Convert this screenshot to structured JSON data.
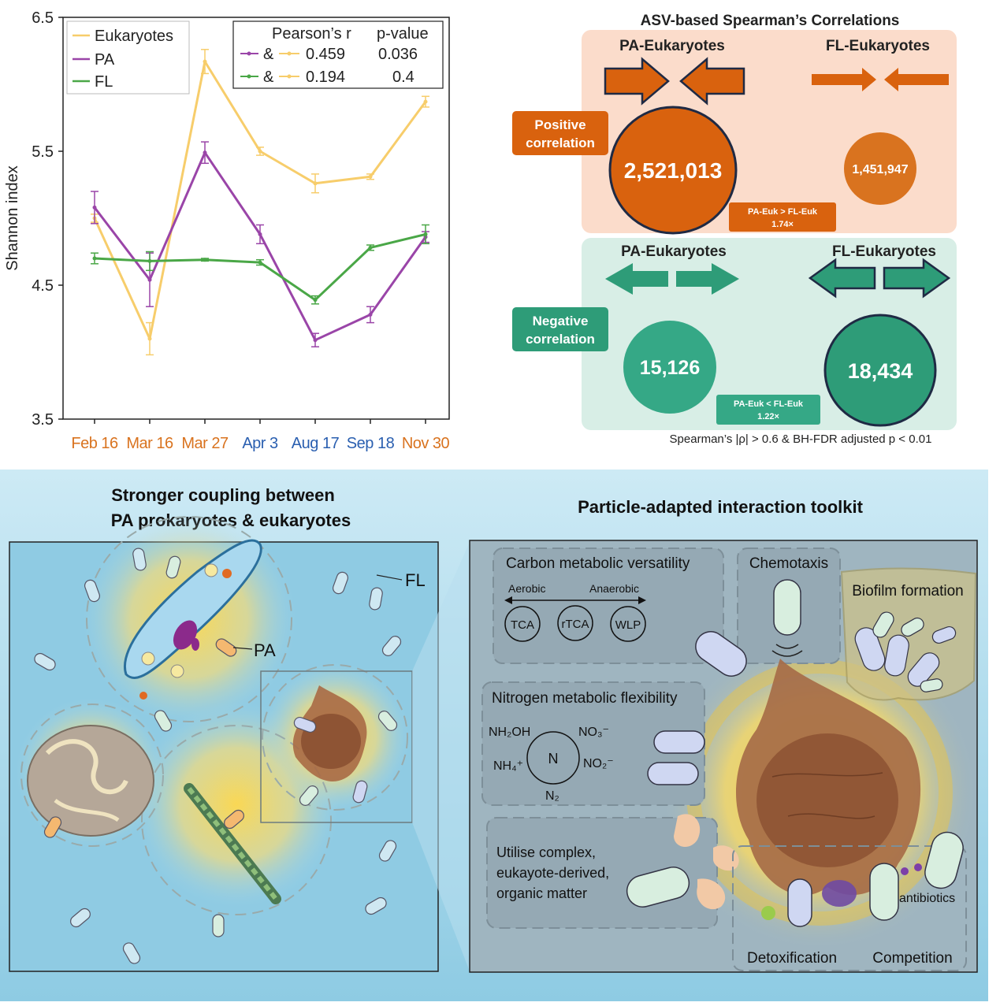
{
  "colors": {
    "eukaryotes": "#f7cd6b",
    "pa": "#9a45a8",
    "fl": "#4aa747",
    "orange_month": "#d9731f",
    "blue_month": "#2a5fb0",
    "positive": "#d9620e",
    "negative": "#2e9c78",
    "positive_bg": "#fbdccb",
    "negative_bg": "#d8eee6",
    "bottom_bg": "#a7d6ea"
  },
  "chart_data": {
    "type": "line",
    "ylabel": "Shannon index",
    "ylim": [
      3.5,
      6.5
    ],
    "yticks": [
      "3.5",
      "4.5",
      "5.5",
      "6.5"
    ],
    "categories": [
      "Feb 16",
      "Mar 16",
      "Mar 27",
      "Apr 3",
      "Aug 17",
      "Sep 18",
      "Nov 30"
    ],
    "category_colors": [
      "orange",
      "orange",
      "orange",
      "blue",
      "blue",
      "blue",
      "orange"
    ],
    "series": [
      {
        "name": "Eukaryotes",
        "color": "#f7cd6b",
        "values": [
          5.0,
          4.1,
          6.17,
          5.5,
          5.26,
          5.31,
          5.87
        ],
        "err": [
          0.03,
          0.12,
          0.09,
          0.03,
          0.07,
          0.02,
          0.04
        ]
      },
      {
        "name": "PA",
        "color": "#9a45a8",
        "values": [
          5.08,
          4.54,
          5.49,
          4.88,
          4.09,
          4.28,
          4.86
        ],
        "err": [
          0.12,
          0.2,
          0.08,
          0.07,
          0.05,
          0.06,
          0.04
        ]
      },
      {
        "name": "FL",
        "color": "#4aa747",
        "values": [
          4.7,
          4.68,
          4.69,
          4.67,
          4.39,
          4.78,
          4.88
        ],
        "err": [
          0.04,
          0.07,
          0.01,
          0.02,
          0.03,
          0.02,
          0.07
        ]
      }
    ],
    "legend_position": "top-left",
    "stats_table": {
      "headers": [
        "Pearson’s r",
        "p-value"
      ],
      "amp": "&",
      "rows": [
        {
          "r": "0.459",
          "p": "0.036",
          "color": "#9a45a8"
        },
        {
          "r": "0.194",
          "p": "0.4",
          "color": "#4aa747"
        }
      ]
    }
  },
  "correlations": {
    "title": "ASV-based Spearman’s Correlations",
    "positive_label": [
      "Positive",
      "correlation"
    ],
    "negative_label": [
      "Negative",
      "correlation"
    ],
    "pa_label": "PA-Eukaryotes",
    "fl_label": "FL-Eukaryotes",
    "pos_pa_count": "2,521,013",
    "pos_fl_count": "1,451,947",
    "neg_pa_count": "15,126",
    "neg_fl_count": "18,434",
    "pos_ratio": [
      "PA-Euk > FL-Euk",
      "1.74×"
    ],
    "neg_ratio": [
      "PA-Euk < FL-Euk",
      "1.22×"
    ],
    "footnote": "Spearman’s |ρ| > 0.6 & BH-FDR adjusted p < 0.01"
  },
  "bottom": {
    "left_title": [
      "Stronger coupling between",
      "PA prokaryotes & eukaryotes"
    ],
    "right_title": "Particle-adapted interaction toolkit",
    "fl_tag": "FL",
    "pa_tag": "PA",
    "carbon": {
      "title": "Carbon metabolic versatility",
      "aerobic": "Aerobic",
      "anaerobic": "Anaerobic",
      "cycles": [
        "TCA",
        "rTCA",
        "WLP"
      ]
    },
    "chemotaxis": "Chemotaxis",
    "biofilm": "Biofilm formation",
    "nitrogen": {
      "title": "Nitrogen metabolic flexibility",
      "center": "N",
      "nh2oh": "NH₂OH",
      "no3": "NO₃⁻",
      "nh4": "NH₄⁺",
      "no2": "NO₂⁻",
      "n2": "N₂"
    },
    "utilise": [
      "Utilise complex,",
      "eukayote-derived,",
      "organic matter"
    ],
    "antibiotics": "antibiotics",
    "detox": "Detoxification",
    "competition": "Competition"
  }
}
